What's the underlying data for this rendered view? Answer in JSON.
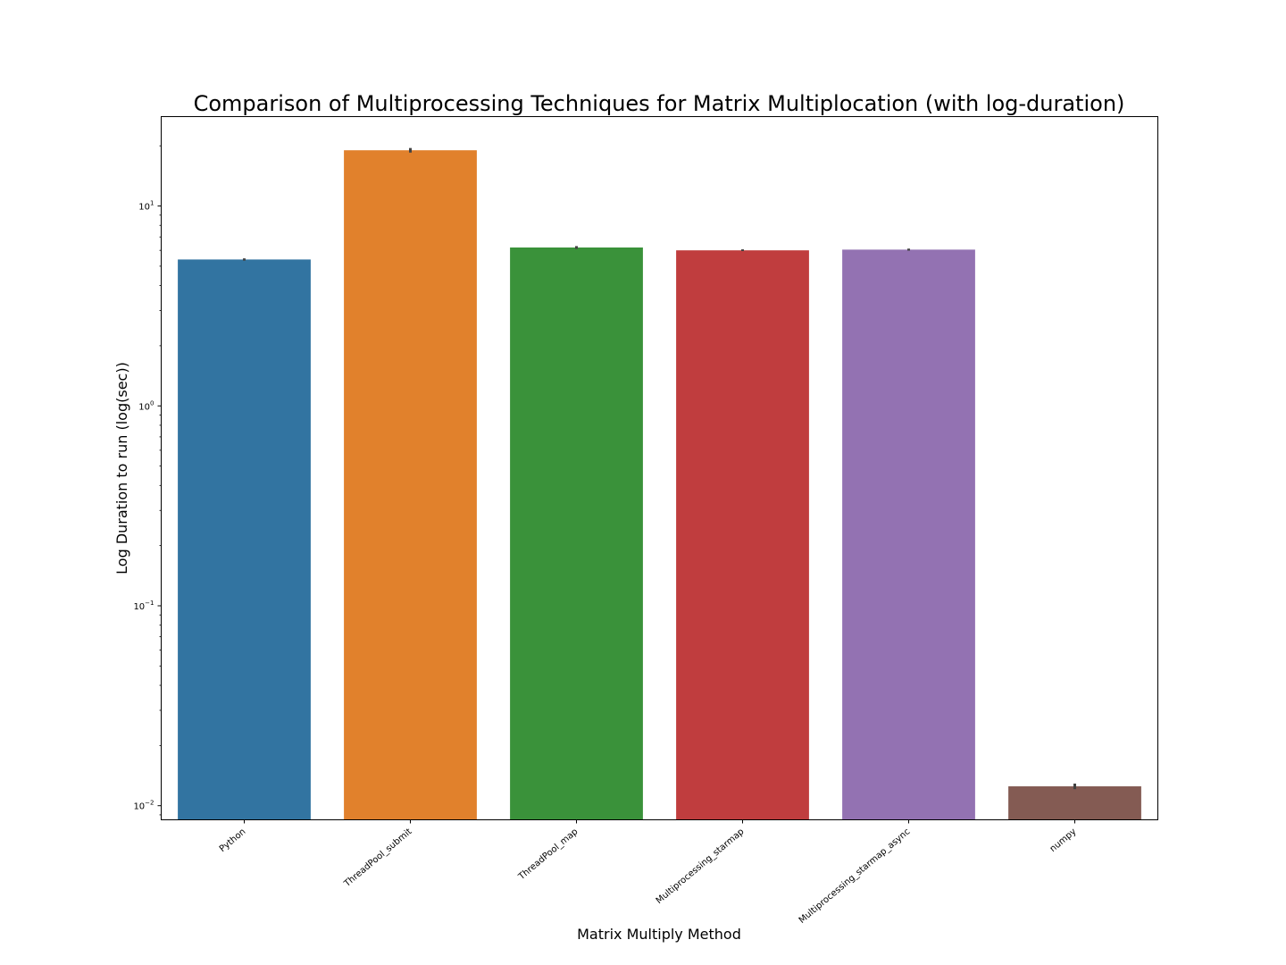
{
  "chart_data": {
    "type": "bar",
    "title": "Comparison of Multiprocessing Techniques for Matrix Multiplocation (with log-duration)",
    "xlabel": "Matrix Multiply Method",
    "ylabel": "Log Duration to run (log(sec))",
    "yscale": "log",
    "ylim": [
      0.0085,
      28
    ],
    "yticks": [
      {
        "value": 0.01,
        "base": "10",
        "exp": "−2"
      },
      {
        "value": 0.1,
        "base": "10",
        "exp": "−1"
      },
      {
        "value": 1,
        "base": "10",
        "exp": "0"
      },
      {
        "value": 10,
        "base": "10",
        "exp": "1"
      }
    ],
    "grid": false,
    "categories": [
      "Python",
      "ThreadPool_submit",
      "ThreadPool_map",
      "Multiprocessing_starmap",
      "Multiprocessing_starmap_async",
      "numpy"
    ],
    "values": [
      5.4,
      19.0,
      6.2,
      6.0,
      6.05,
      0.0125
    ],
    "error_low": [
      5.33,
      18.5,
      6.1,
      5.95,
      5.98,
      0.0121
    ],
    "error_high": [
      5.47,
      19.5,
      6.3,
      6.07,
      6.12,
      0.0129
    ],
    "colors": [
      "#3274a1",
      "#e1812c",
      "#3a923a",
      "#c03d3e",
      "#9372b2",
      "#845b53"
    ],
    "error_color": "#424242"
  }
}
